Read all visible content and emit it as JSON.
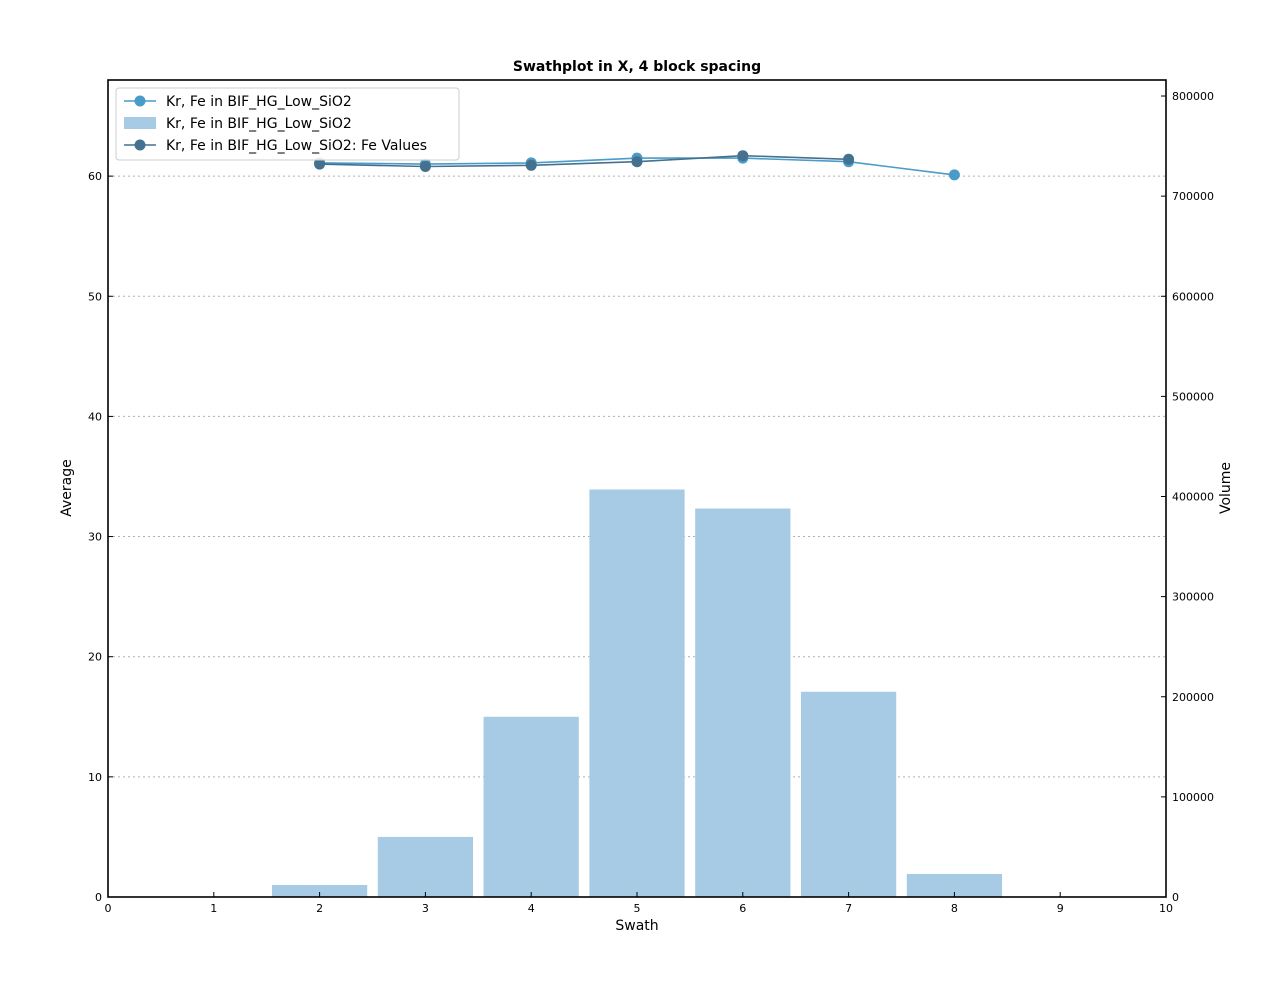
{
  "chart_data": {
    "type": "bar",
    "title": "Swathplot in X, 4 block spacing",
    "xlabel": "Swath",
    "ylabel": "Average",
    "y2label": "Volume",
    "xlim": [
      0,
      10
    ],
    "ylim": [
      0,
      68
    ],
    "y2lim": [
      0,
      816000
    ],
    "xticks": [
      0,
      1,
      2,
      3,
      4,
      5,
      6,
      7,
      8,
      9,
      10
    ],
    "yticks": [
      0,
      10,
      20,
      30,
      40,
      50,
      60
    ],
    "y2ticks": [
      0,
      100000,
      200000,
      300000,
      400000,
      500000,
      600000,
      700000,
      800000
    ],
    "grid": "horizontal dotted",
    "legend_position": "top-left",
    "series": [
      {
        "name": "Kr, Fe in BIF_HG_Low_SiO2",
        "kind": "line",
        "axis": "left",
        "color": "#4a9bc7",
        "x": [
          2,
          3,
          4,
          5,
          6,
          7,
          8
        ],
        "values": [
          61.1,
          61.0,
          61.1,
          61.5,
          61.5,
          61.2,
          60.1
        ]
      },
      {
        "name": "Kr, Fe in BIF_HG_Low_SiO2",
        "kind": "bar",
        "axis": "right",
        "color": "#a7cbe4",
        "x": [
          2,
          3,
          4,
          5,
          6,
          7,
          8
        ],
        "values": [
          12000,
          60000,
          180000,
          407000,
          388000,
          205000,
          23000
        ]
      },
      {
        "name": "Kr, Fe in BIF_HG_Low_SiO2: Fe Values",
        "kind": "line",
        "axis": "left",
        "color": "#44718f",
        "x": [
          2,
          3,
          4,
          5,
          6,
          7
        ],
        "values": [
          61.0,
          60.8,
          60.9,
          61.2,
          61.7,
          61.4
        ]
      }
    ]
  }
}
